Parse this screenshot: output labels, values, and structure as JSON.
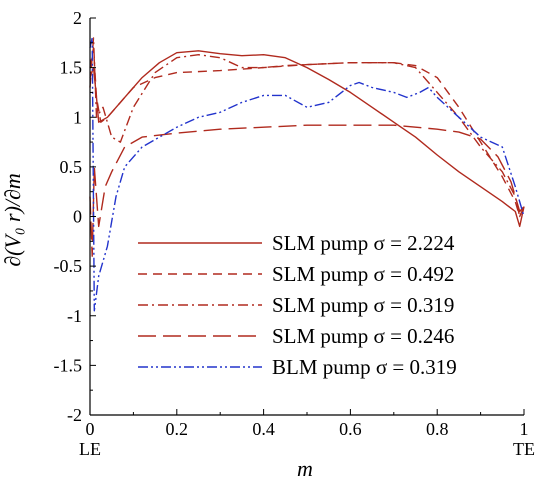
{
  "chart_data": {
    "type": "line",
    "title": "",
    "xlabel": "m",
    "ylabel": "∂(V₀ r)/∂m",
    "xlim": [
      0,
      1
    ],
    "ylim": [
      -2,
      2
    ],
    "x_ticks": [
      {
        "value": 0,
        "label": "0"
      },
      {
        "value": 0.2,
        "label": "0.2"
      },
      {
        "value": 0.4,
        "label": "0.4"
      },
      {
        "value": 0.6,
        "label": "0.6"
      },
      {
        "value": 0.8,
        "label": "0.8"
      },
      {
        "value": 1,
        "label": "1"
      }
    ],
    "x_end_labels": {
      "left": "LE",
      "right": "TE"
    },
    "y_ticks": [
      {
        "value": 2,
        "label": "2"
      },
      {
        "value": 1.5,
        "label": "1.5"
      },
      {
        "value": 1,
        "label": "1"
      },
      {
        "value": 0.5,
        "label": "0.5"
      },
      {
        "value": 0,
        "label": "0"
      },
      {
        "value": -0.5,
        "label": "-0.5"
      },
      {
        "value": -1,
        "label": "-1"
      },
      {
        "value": -1.5,
        "label": "-1.5"
      },
      {
        "value": -2,
        "label": "-2"
      }
    ],
    "grid": false,
    "legend_position": "bottom-right",
    "series": [
      {
        "name": "SLM pump σ = 2.224",
        "color": "#b02a1e",
        "dash": "solid",
        "points": [
          [
            0,
            1.4
          ],
          [
            0.008,
            1.5
          ],
          [
            0.015,
            1.2
          ],
          [
            0.02,
            0.95
          ],
          [
            0.04,
            1.0
          ],
          [
            0.08,
            1.2
          ],
          [
            0.12,
            1.4
          ],
          [
            0.16,
            1.55
          ],
          [
            0.2,
            1.65
          ],
          [
            0.25,
            1.67
          ],
          [
            0.3,
            1.64
          ],
          [
            0.35,
            1.62
          ],
          [
            0.4,
            1.63
          ],
          [
            0.45,
            1.6
          ],
          [
            0.5,
            1.5
          ],
          [
            0.55,
            1.38
          ],
          [
            0.6,
            1.25
          ],
          [
            0.65,
            1.1
          ],
          [
            0.7,
            0.95
          ],
          [
            0.75,
            0.8
          ],
          [
            0.8,
            0.62
          ],
          [
            0.85,
            0.45
          ],
          [
            0.9,
            0.3
          ],
          [
            0.95,
            0.15
          ],
          [
            0.98,
            0.05
          ],
          [
            0.99,
            -0.1
          ],
          [
            1.0,
            0.1
          ]
        ]
      },
      {
        "name": "SLM pump σ = 0.492",
        "color": "#b02a1e",
        "dash": "medium-dash",
        "points": [
          [
            0,
            1.5
          ],
          [
            0.008,
            1.7
          ],
          [
            0.015,
            1.2
          ],
          [
            0.025,
            0.95
          ],
          [
            0.04,
            1.0
          ],
          [
            0.07,
            1.15
          ],
          [
            0.1,
            1.3
          ],
          [
            0.15,
            1.4
          ],
          [
            0.2,
            1.45
          ],
          [
            0.3,
            1.47
          ],
          [
            0.4,
            1.5
          ],
          [
            0.5,
            1.53
          ],
          [
            0.6,
            1.55
          ],
          [
            0.7,
            1.55
          ],
          [
            0.75,
            1.52
          ],
          [
            0.8,
            1.4
          ],
          [
            0.85,
            1.1
          ],
          [
            0.9,
            0.75
          ],
          [
            0.95,
            0.4
          ],
          [
            0.98,
            0.15
          ],
          [
            0.99,
            0.0
          ],
          [
            1.0,
            0.1
          ]
        ]
      },
      {
        "name": "SLM pump σ = 0.319",
        "color": "#b02a1e",
        "dash": "dash-dot",
        "points": [
          [
            0,
            1.3
          ],
          [
            0.008,
            1.8
          ],
          [
            0.015,
            1.0
          ],
          [
            0.03,
            1.1
          ],
          [
            0.05,
            0.8
          ],
          [
            0.07,
            0.75
          ],
          [
            0.1,
            1.1
          ],
          [
            0.15,
            1.45
          ],
          [
            0.2,
            1.6
          ],
          [
            0.25,
            1.63
          ],
          [
            0.3,
            1.6
          ],
          [
            0.35,
            1.5
          ],
          [
            0.4,
            1.5
          ],
          [
            0.45,
            1.52
          ],
          [
            0.5,
            1.53
          ],
          [
            0.6,
            1.55
          ],
          [
            0.7,
            1.55
          ],
          [
            0.75,
            1.5
          ],
          [
            0.8,
            1.25
          ],
          [
            0.85,
            1.0
          ],
          [
            0.9,
            0.7
          ],
          [
            0.95,
            0.45
          ],
          [
            0.98,
            0.2
          ],
          [
            0.99,
            0.0
          ],
          [
            1.0,
            0.1
          ]
        ]
      },
      {
        "name": "SLM pump σ = 0.246",
        "color": "#b02a1e",
        "dash": "long-dash",
        "points": [
          [
            0,
            0.2
          ],
          [
            0.005,
            -0.4
          ],
          [
            0.01,
            0.5
          ],
          [
            0.02,
            -0.1
          ],
          [
            0.035,
            0.3
          ],
          [
            0.05,
            0.45
          ],
          [
            0.08,
            0.7
          ],
          [
            0.12,
            0.8
          ],
          [
            0.2,
            0.84
          ],
          [
            0.3,
            0.88
          ],
          [
            0.4,
            0.9
          ],
          [
            0.5,
            0.92
          ],
          [
            0.6,
            0.92
          ],
          [
            0.7,
            0.92
          ],
          [
            0.8,
            0.88
          ],
          [
            0.85,
            0.85
          ],
          [
            0.9,
            0.78
          ],
          [
            0.94,
            0.6
          ],
          [
            0.97,
            0.35
          ],
          [
            0.99,
            0.05
          ],
          [
            1.0,
            0.1
          ]
        ]
      },
      {
        "name": "BLM pump σ = 0.319",
        "color": "#2233cc",
        "dash": "dash-dot-dot",
        "points": [
          [
            0,
            1.7
          ],
          [
            0.005,
            1.8
          ],
          [
            0.01,
            -0.95
          ],
          [
            0.02,
            -0.6
          ],
          [
            0.04,
            -0.3
          ],
          [
            0.06,
            0.2
          ],
          [
            0.08,
            0.5
          ],
          [
            0.12,
            0.7
          ],
          [
            0.2,
            0.9
          ],
          [
            0.25,
            1.0
          ],
          [
            0.3,
            1.05
          ],
          [
            0.35,
            1.15
          ],
          [
            0.4,
            1.22
          ],
          [
            0.45,
            1.22
          ],
          [
            0.5,
            1.1
          ],
          [
            0.55,
            1.15
          ],
          [
            0.6,
            1.32
          ],
          [
            0.62,
            1.35
          ],
          [
            0.65,
            1.3
          ],
          [
            0.7,
            1.25
          ],
          [
            0.73,
            1.2
          ],
          [
            0.76,
            1.25
          ],
          [
            0.78,
            1.3
          ],
          [
            0.8,
            1.2
          ],
          [
            0.85,
            1.0
          ],
          [
            0.9,
            0.8
          ],
          [
            0.95,
            0.7
          ],
          [
            0.98,
            0.3
          ],
          [
            1.0,
            0.0
          ]
        ]
      }
    ]
  }
}
